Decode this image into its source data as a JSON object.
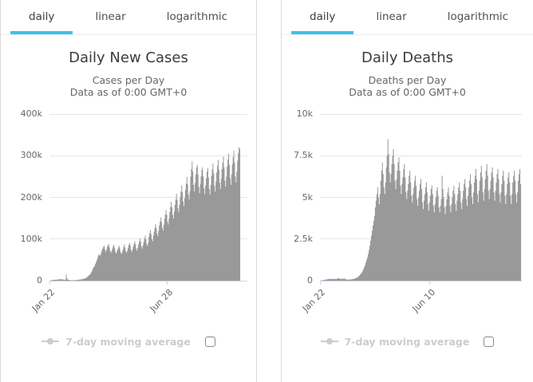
{
  "tabs": {
    "items": [
      "daily",
      "linear",
      "logarithmic"
    ],
    "active": "daily"
  },
  "colors": {
    "accent": "#38c2ef",
    "bar": "#999999",
    "grid": "#e6e6e6",
    "axis_line": "#ccd6eb",
    "axis_label": "#666666",
    "title": "#3c3c3c",
    "subtitle": "#666666",
    "legend_disabled": "#cccccc",
    "card_border": "#d9d9d9",
    "tab_border": "#ececec",
    "checkbox_border": "#8b8b8b"
  },
  "chart_data": [
    {
      "type": "bar",
      "title": "Daily New Cases",
      "subtitle_line1": "Cases per Day",
      "subtitle_line2": "Data as of 0:00 GMT+0",
      "legend_label": "7-day moving average",
      "legend_checkbox_checked": false,
      "legend_position": "bottom",
      "grid": true,
      "ymax": 400000,
      "yticks": [
        {
          "value": 0,
          "label": "0"
        },
        {
          "value": 100000,
          "label": "100k"
        },
        {
          "value": 200000,
          "label": "200k"
        },
        {
          "value": 300000,
          "label": "300k"
        },
        {
          "value": 400000,
          "label": "400k"
        }
      ],
      "xticks": [
        {
          "label": "Jan 22",
          "day": 0
        },
        {
          "label": "Jun 28",
          "day": 158
        }
      ],
      "values": [
        600,
        700,
        900,
        1800,
        1500,
        2100,
        2800,
        2000,
        2100,
        2600,
        2400,
        2900,
        3200,
        3900,
        3700,
        3200,
        3400,
        2800,
        3000,
        2600,
        2500,
        2000,
        15200,
        6500,
        2600,
        2200,
        1900,
        1800,
        600,
        1100,
        900,
        1400,
        1100,
        900,
        1100,
        1400,
        1700,
        2000,
        2400,
        2200,
        2600,
        2900,
        3200,
        3600,
        4100,
        4500,
        4900,
        5400,
        6100,
        7200,
        8600,
        10500,
        12000,
        13500,
        15500,
        18000,
        21000,
        25000,
        30000,
        33000,
        35000,
        40000,
        44000,
        49000,
        54000,
        60000,
        64000,
        60000,
        62000,
        68000,
        74000,
        77000,
        81000,
        84000,
        75000,
        69000,
        74000,
        81000,
        85000,
        88000,
        80000,
        72000,
        67000,
        71000,
        77000,
        83000,
        86000,
        79000,
        70000,
        65000,
        70000,
        75000,
        80000,
        84000,
        77000,
        68000,
        64000,
        68000,
        74000,
        81000,
        87000,
        80000,
        71000,
        67000,
        72000,
        79000,
        86000,
        91000,
        84000,
        74000,
        69000,
        75000,
        82000,
        89000,
        95000,
        87000,
        77000,
        72000,
        79000,
        87000,
        94000,
        101000,
        93000,
        82000,
        77000,
        85000,
        93000,
        101000,
        108000,
        99000,
        88000,
        83000,
        91000,
        105000,
        114000,
        122000,
        112000,
        100000,
        95000,
        108000,
        118000,
        127000,
        136000,
        126000,
        113000,
        107000,
        120000,
        132000,
        142000,
        152000,
        141000,
        127000,
        120000,
        134000,
        148000,
        159000,
        170000,
        158000,
        142000,
        135000,
        150000,
        165000,
        177000,
        190000,
        176000,
        158000,
        149000,
        166000,
        182000,
        195000,
        209000,
        194000,
        174000,
        164000,
        182000,
        200000,
        214000,
        229000,
        212000,
        190000,
        179000,
        198000,
        218000,
        233000,
        249000,
        231000,
        207000,
        195000,
        215000,
        250000,
        268000,
        286000,
        262000,
        230000,
        214000,
        235000,
        255000,
        272000,
        278000,
        255000,
        225000,
        210000,
        232000,
        250000,
        266000,
        272000,
        250000,
        222000,
        208000,
        228000,
        246000,
        262000,
        270000,
        248000,
        220000,
        207000,
        230000,
        252000,
        268000,
        281000,
        258000,
        228000,
        214000,
        238000,
        260000,
        276000,
        290000,
        266000,
        235000,
        220000,
        244000,
        268000,
        284000,
        298000,
        272000,
        240000,
        226000,
        250000,
        274000,
        291000,
        305000,
        278000,
        246000,
        230000,
        255000,
        280000,
        297000,
        312000,
        284000,
        250000,
        236000,
        262000,
        288000,
        306000,
        320000,
        316000
      ]
    },
    {
      "type": "bar",
      "title": "Daily Deaths",
      "subtitle_line1": "Deaths per Day",
      "subtitle_line2": "Data as of 0:00 GMT+0",
      "legend_label": "7-day moving average",
      "legend_checkbox_checked": false,
      "legend_position": "bottom",
      "grid": true,
      "ymax": 10000,
      "yticks": [
        {
          "value": 0,
          "label": "0"
        },
        {
          "value": 2500,
          "label": "2.5k"
        },
        {
          "value": 5000,
          "label": "5k"
        },
        {
          "value": 7500,
          "label": "7.5k"
        },
        {
          "value": 10000,
          "label": "10k"
        }
      ],
      "xticks": [
        {
          "label": "Jan 22",
          "day": 0
        },
        {
          "label": "Jun 10",
          "day": 140
        }
      ],
      "values": [
        10,
        15,
        25,
        25,
        40,
        45,
        65,
        65,
        70,
        85,
        95,
        100,
        110,
        120,
        90,
        100,
        110,
        95,
        105,
        100,
        110,
        100,
        145,
        145,
        140,
        110,
        105,
        100,
        115,
        120,
        105,
        150,
        75,
        70,
        80,
        60,
        65,
        70,
        75,
        80,
        85,
        95,
        105,
        110,
        130,
        150,
        175,
        200,
        230,
        270,
        320,
        380,
        440,
        510,
        600,
        700,
        820,
        950,
        1100,
        1250,
        1400,
        1600,
        1850,
        2100,
        2400,
        2700,
        3000,
        3300,
        3600,
        3900,
        4400,
        4800,
        5200,
        5600,
        5000,
        4600,
        5200,
        6000,
        6600,
        7100,
        6400,
        5600,
        5200,
        5900,
        6800,
        7500,
        8500,
        7600,
        6500,
        5900,
        6400,
        7000,
        7500,
        7900,
        7000,
        6000,
        5500,
        6100,
        6600,
        7100,
        7400,
        6600,
        5700,
        5200,
        5800,
        6200,
        6700,
        7000,
        6200,
        5300,
        4900,
        5400,
        5800,
        6300,
        6600,
        5900,
        5100,
        4700,
        5200,
        5600,
        6000,
        6300,
        5700,
        4900,
        4500,
        5000,
        5400,
        5800,
        6100,
        5500,
        4700,
        4300,
        4800,
        5200,
        5600,
        5900,
        5300,
        4600,
        4200,
        4700,
        5100,
        5500,
        5700,
        5200,
        4500,
        4100,
        4600,
        5000,
        5400,
        5600,
        5100,
        4400,
        4100,
        4500,
        4900,
        6300,
        5500,
        5000,
        4400,
        4000,
        4500,
        4900,
        5300,
        5600,
        5100,
        4500,
        4100,
        4600,
        5000,
        5400,
        5700,
        5200,
        4600,
        4200,
        4800,
        5200,
        5600,
        5900,
        5400,
        4700,
        4300,
        4900,
        5400,
        5800,
        6100,
        5600,
        4900,
        4500,
        5100,
        5600,
        6000,
        6400,
        5800,
        5000,
        4600,
        5300,
        5900,
        6300,
        6700,
        6100,
        5200,
        4700,
        5400,
        6000,
        6500,
        6900,
        6200,
        5300,
        4800,
        5500,
        6100,
        6600,
        7000,
        6300,
        5400,
        4900,
        5500,
        6000,
        6500,
        6800,
        6200,
        5300,
        4800,
        5400,
        5900,
        6400,
        6700,
        6100,
        5200,
        4700,
        5300,
        5800,
        6300,
        6600,
        6000,
        5100,
        4600,
        5200,
        5800,
        6200,
        6500,
        5900,
        5100,
        4600,
        5200,
        5900,
        6300,
        6600,
        6000,
        5200,
        4700,
        5300,
        6000,
        6400,
        6700,
        5800
      ]
    }
  ]
}
